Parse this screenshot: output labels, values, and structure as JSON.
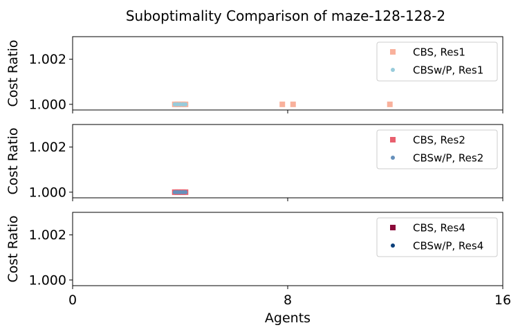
{
  "title": "Suboptimality Comparison of maze-128-128-2",
  "x_axis_label": "Agents",
  "chart_data": [
    {
      "type": "scatter",
      "ylabel": "Cost Ratio",
      "xlim": [
        0,
        16
      ],
      "ylim": [
        0.99975,
        1.003
      ],
      "yticks": [
        "1.000",
        "1.002"
      ],
      "ytick_values": [
        1.0,
        1.002
      ],
      "xticks": [
        0,
        8,
        16
      ],
      "x_tick_labels_shown": false,
      "grid": false,
      "legend_position": "top-right",
      "series": [
        {
          "name": "CBS, Res1",
          "marker": "square",
          "color": "#f9b19c",
          "points": [
            [
              3.8,
              1.0
            ],
            [
              3.9,
              1.0
            ],
            [
              4.0,
              1.0
            ],
            [
              4.1,
              1.0
            ],
            [
              4.2,
              1.0
            ],
            [
              7.8,
              1.0
            ],
            [
              8.2,
              1.0
            ],
            [
              11.8,
              1.0
            ]
          ]
        },
        {
          "name": "CBSw/P, Res1",
          "marker": "circle",
          "color": "#98cbdb",
          "points": [
            [
              3.8,
              1.0
            ],
            [
              3.9,
              1.0
            ],
            [
              4.0,
              1.0
            ],
            [
              4.1,
              1.0
            ],
            [
              4.2,
              1.0
            ]
          ]
        }
      ]
    },
    {
      "type": "scatter",
      "ylabel": "Cost Ratio",
      "xlim": [
        0,
        16
      ],
      "ylim": [
        0.99975,
        1.003
      ],
      "yticks": [
        "1.000",
        "1.002"
      ],
      "ytick_values": [
        1.0,
        1.002
      ],
      "xticks": [
        0,
        8,
        16
      ],
      "x_tick_labels_shown": false,
      "grid": false,
      "legend_position": "top-right",
      "series": [
        {
          "name": "CBS, Res2",
          "marker": "square",
          "color": "#e8606e",
          "points": [
            [
              3.8,
              1.0
            ],
            [
              3.9,
              1.0
            ],
            [
              4.0,
              1.0
            ],
            [
              4.1,
              1.0
            ],
            [
              4.2,
              1.0
            ]
          ]
        },
        {
          "name": "CBSw/P, Res2",
          "marker": "circle",
          "color": "#6690bb",
          "points": [
            [
              3.8,
              1.0
            ],
            [
              3.9,
              1.0
            ],
            [
              4.0,
              1.0
            ],
            [
              4.1,
              1.0
            ],
            [
              4.2,
              1.0
            ]
          ]
        }
      ]
    },
    {
      "type": "scatter",
      "ylabel": "Cost Ratio",
      "xlim": [
        0,
        16
      ],
      "ylim": [
        0.99975,
        1.003
      ],
      "yticks": [
        "1.000",
        "1.002"
      ],
      "ytick_values": [
        1.0,
        1.002
      ],
      "xticks": [
        0,
        8,
        16
      ],
      "x_tick_labels": [
        "0",
        "8",
        "16"
      ],
      "x_tick_labels_shown": true,
      "grid": false,
      "legend_position": "top-right",
      "series": [
        {
          "name": "CBS, Res4",
          "marker": "square",
          "color": "#8b0a3a",
          "points": []
        },
        {
          "name": "CBSw/P, Res4",
          "marker": "circle",
          "color": "#0b3f7a",
          "points": []
        }
      ]
    }
  ]
}
